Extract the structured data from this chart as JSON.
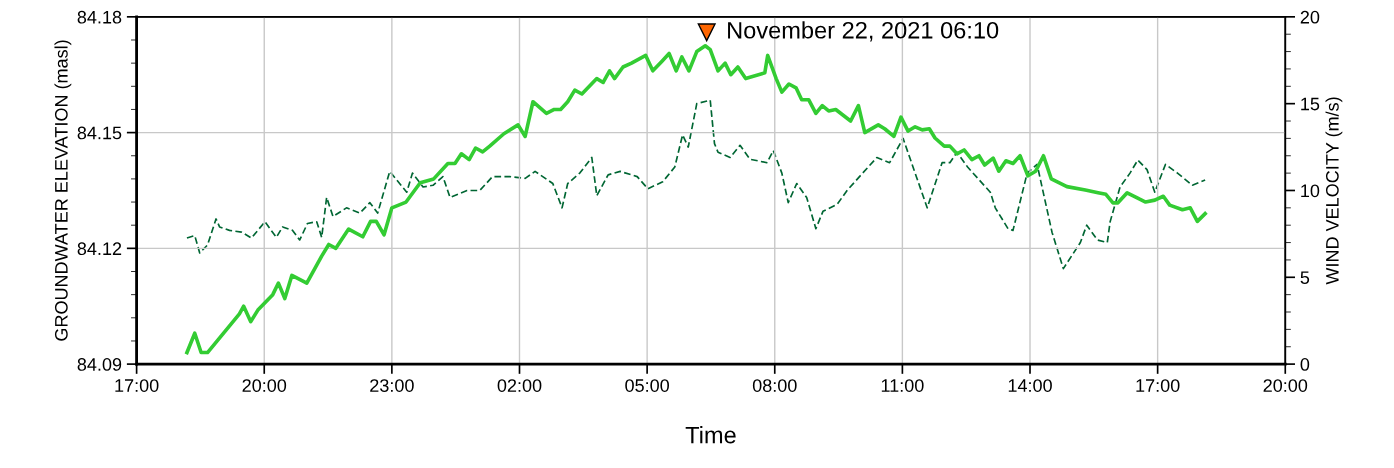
{
  "chart_data": {
    "type": "line",
    "xlabel": "Time",
    "ylabel": "GROUNDWATER ELEVATION (masl)",
    "y2label": "WIND VELOCITY (m/s)",
    "xlim": [
      "2021-11-21T17:00",
      "2021-11-22T20:00"
    ],
    "xticks": [
      {
        "value": "2021-11-21T17:00",
        "label": "17:00"
      },
      {
        "value": "2021-11-21T20:00",
        "label": "20:00"
      },
      {
        "value": "2021-11-21T23:00",
        "label": "23:00"
      },
      {
        "value": "2021-11-22T02:00",
        "label": "02:00"
      },
      {
        "value": "2021-11-22T05:00",
        "label": "05:00"
      },
      {
        "value": "2021-11-22T08:00",
        "label": "08:00"
      },
      {
        "value": "2021-11-22T11:00",
        "label": "11:00"
      },
      {
        "value": "2021-11-22T14:00",
        "label": "14:00"
      },
      {
        "value": "2021-11-22T17:00",
        "label": "17:00"
      },
      {
        "value": "2021-11-22T20:00",
        "label": "20:00"
      }
    ],
    "ylim": [
      84.09,
      84.18
    ],
    "yticks": [
      84.09,
      84.12,
      84.15,
      84.18
    ],
    "y2lim": [
      0,
      20
    ],
    "y2ticks": [
      0,
      5,
      10,
      15,
      20
    ],
    "grid": true,
    "marker": "none",
    "annotations": [
      {
        "text": "November 22, 2021 06:10",
        "x": "2021-11-22T06:24",
        "y": 84.176
      }
    ],
    "series": [
      {
        "color": "#33cc33",
        "line_style": "solid",
        "x": [
          "2021-11-21T18:11",
          "2021-11-21T18:22",
          "2021-11-21T18:31",
          "2021-11-21T18:40",
          "2021-11-21T19:25",
          "2021-11-21T19:31",
          "2021-11-21T19:41",
          "2021-11-21T19:51",
          "2021-11-21T20:12",
          "2021-11-21T20:20",
          "2021-11-21T20:29",
          "2021-11-21T20:39",
          "2021-11-21T21:00",
          "2021-11-21T21:21",
          "2021-11-21T21:31",
          "2021-11-21T21:41",
          "2021-11-21T21:59",
          "2021-11-21T22:19",
          "2021-11-21T22:30",
          "2021-11-21T22:38",
          "2021-11-21T22:49",
          "2021-11-21T23:00",
          "2021-11-21T23:20",
          "2021-11-21T23:40",
          "2021-11-21T23:59",
          "2021-11-22T00:19",
          "2021-11-22T00:29",
          "2021-11-22T00:38",
          "2021-11-22T00:49",
          "2021-11-22T00:58",
          "2021-11-22T01:08",
          "2021-11-22T01:18",
          "2021-11-22T01:38",
          "2021-11-22T01:58",
          "2021-11-22T02:08",
          "2021-11-22T02:19",
          "2021-11-22T02:38",
          "2021-11-22T02:49",
          "2021-11-22T02:58",
          "2021-11-22T03:08",
          "2021-11-22T03:18",
          "2021-11-22T03:28",
          "2021-11-22T03:49",
          "2021-11-22T03:58",
          "2021-11-22T04:07",
          "2021-11-22T04:14",
          "2021-11-22T04:26",
          "2021-11-22T04:38",
          "2021-11-22T04:58",
          "2021-11-22T05:08",
          "2021-11-22T05:21",
          "2021-11-22T05:31",
          "2021-11-22T05:41",
          "2021-11-22T05:49",
          "2021-11-22T05:59",
          "2021-11-22T06:10",
          "2021-11-22T06:22",
          "2021-11-22T06:29",
          "2021-11-22T06:40",
          "2021-11-22T06:50",
          "2021-11-22T06:58",
          "2021-11-22T07:08",
          "2021-11-22T07:19",
          "2021-11-22T07:46",
          "2021-11-22T07:50",
          "2021-11-22T08:02",
          "2021-11-22T08:10",
          "2021-11-22T08:20",
          "2021-11-22T08:30",
          "2021-11-22T08:38",
          "2021-11-22T08:48",
          "2021-11-22T08:58",
          "2021-11-22T09:07",
          "2021-11-22T09:16",
          "2021-11-22T09:26",
          "2021-11-22T09:47",
          "2021-11-22T09:58",
          "2021-11-22T10:07",
          "2021-11-22T10:26",
          "2021-11-22T10:35",
          "2021-11-22T10:48",
          "2021-11-22T10:58",
          "2021-11-22T11:08",
          "2021-11-22T11:18",
          "2021-11-22T11:28",
          "2021-11-22T11:38",
          "2021-11-22T11:46",
          "2021-11-22T11:59",
          "2021-11-22T12:07",
          "2021-11-22T12:17",
          "2021-11-22T12:27",
          "2021-11-22T12:38",
          "2021-11-22T12:48",
          "2021-11-22T12:56",
          "2021-11-22T13:08",
          "2021-11-22T13:16",
          "2021-11-22T13:26",
          "2021-11-22T13:36",
          "2021-11-22T13:46",
          "2021-11-22T13:57",
          "2021-11-22T14:08",
          "2021-11-22T14:19",
          "2021-11-22T14:30",
          "2021-11-22T14:52",
          "2021-11-22T15:18",
          "2021-11-22T15:36",
          "2021-11-22T15:47",
          "2021-11-22T15:57",
          "2021-11-22T16:04",
          "2021-11-22T16:17",
          "2021-11-22T16:34",
          "2021-11-22T16:43",
          "2021-11-22T16:56",
          "2021-11-22T17:08",
          "2021-11-22T17:17",
          "2021-11-22T17:35",
          "2021-11-22T17:46",
          "2021-11-22T17:56",
          "2021-11-22T18:07"
        ],
        "values": [
          84.093,
          84.098,
          84.093,
          84.093,
          84.103,
          84.105,
          84.101,
          84.104,
          84.108,
          84.111,
          84.107,
          84.113,
          84.111,
          84.118,
          84.121,
          84.12,
          84.125,
          84.123,
          84.127,
          84.127,
          84.1235,
          84.1305,
          84.132,
          84.137,
          84.138,
          84.142,
          84.142,
          84.1445,
          84.143,
          84.146,
          84.145,
          84.1465,
          84.1497,
          84.152,
          84.149,
          84.158,
          84.155,
          84.156,
          84.156,
          84.158,
          84.161,
          84.16,
          84.164,
          84.163,
          84.166,
          84.164,
          84.167,
          84.168,
          84.17,
          84.166,
          84.1685,
          84.1705,
          84.166,
          84.1696,
          84.166,
          84.171,
          84.1725,
          84.1715,
          84.166,
          84.168,
          84.165,
          84.167,
          84.164,
          84.1655,
          84.17,
          84.164,
          84.1605,
          84.1626,
          84.1616,
          84.1585,
          84.1585,
          84.155,
          84.157,
          84.1556,
          84.156,
          84.153,
          84.157,
          84.15,
          84.152,
          84.151,
          84.149,
          84.154,
          84.1504,
          84.1515,
          84.1507,
          84.151,
          84.1486,
          84.1465,
          84.1465,
          84.1445,
          84.1455,
          84.143,
          84.144,
          84.1416,
          84.1434,
          84.14,
          84.1427,
          84.142,
          84.144,
          84.1388,
          84.14,
          84.144,
          84.138,
          84.136,
          84.1351,
          84.1344,
          84.134,
          84.1318,
          84.1318,
          84.1344,
          84.1328,
          84.132,
          84.1325,
          84.1335,
          84.1312,
          84.13,
          84.1305,
          84.127,
          84.129
        ]
      },
      {
        "color": "#006633",
        "line_style": "dashed",
        "axis": "y2",
        "x": [
          "2021-11-21T18:11",
          "2021-11-21T18:22",
          "2021-11-21T18:29",
          "2021-11-21T18:40",
          "2021-11-21T18:52",
          "2021-11-21T18:57",
          "2021-11-21T19:11",
          "2021-11-21T19:28",
          "2021-11-21T19:42",
          "2021-11-21T20:01",
          "2021-11-21T20:17",
          "2021-11-21T20:26",
          "2021-11-21T20:40",
          "2021-11-21T20:50",
          "2021-11-21T21:01",
          "2021-11-21T21:14",
          "2021-11-21T21:21",
          "2021-11-21T21:28",
          "2021-11-21T21:37",
          "2021-11-21T21:56",
          "2021-11-21T22:15",
          "2021-11-21T22:29",
          "2021-11-21T22:40",
          "2021-11-21T22:57",
          "2021-11-21T23:21",
          "2021-11-21T23:29",
          "2021-11-21T23:44",
          "2021-11-21T23:58",
          "2021-11-22T00:12",
          "2021-11-22T00:22",
          "2021-11-22T00:46",
          "2021-11-22T01:04",
          "2021-11-22T01:22",
          "2021-11-22T01:46",
          "2021-11-22T02:08",
          "2021-11-22T02:22",
          "2021-11-22T02:47",
          "2021-11-22T03:00",
          "2021-11-22T03:08",
          "2021-11-22T03:25",
          "2021-11-22T03:42",
          "2021-11-22T03:49",
          "2021-11-22T04:05",
          "2021-11-22T04:22",
          "2021-11-22T04:46",
          "2021-11-22T05:01",
          "2021-11-22T05:22",
          "2021-11-22T05:39",
          "2021-11-22T05:50",
          "2021-11-22T05:58",
          "2021-11-22T06:10",
          "2021-11-22T06:29",
          "2021-11-22T06:35",
          "2021-11-22T06:40",
          "2021-11-22T06:57",
          "2021-11-22T07:11",
          "2021-11-22T07:25",
          "2021-11-22T07:49",
          "2021-11-22T07:58",
          "2021-11-22T08:10",
          "2021-11-22T08:19",
          "2021-11-22T08:31",
          "2021-11-22T08:45",
          "2021-11-22T08:58",
          "2021-11-22T09:08",
          "2021-11-22T09:28",
          "2021-11-22T09:42",
          "2021-11-22T10:04",
          "2021-11-22T10:24",
          "2021-11-22T10:42",
          "2021-11-22T11:01",
          "2021-11-22T11:35",
          "2021-11-22T11:56",
          "2021-11-22T12:07",
          "2021-11-22T12:17",
          "2021-11-22T12:32",
          "2021-11-22T13:04",
          "2021-11-22T13:11",
          "2021-11-22T13:29",
          "2021-11-22T13:36",
          "2021-11-22T13:56",
          "2021-11-22T14:10",
          "2021-11-22T14:31",
          "2021-11-22T14:47",
          "2021-11-22T15:11",
          "2021-11-22T15:20",
          "2021-11-22T15:35",
          "2021-11-22T15:49",
          "2021-11-22T15:53",
          "2021-11-22T16:07",
          "2021-11-22T16:21",
          "2021-11-22T16:32",
          "2021-11-22T16:45",
          "2021-11-22T16:56",
          "2021-11-22T17:11",
          "2021-11-22T17:28",
          "2021-11-22T17:49",
          "2021-11-22T18:07"
        ],
        "values": [
          7.26,
          7.4,
          6.4,
          6.86,
          8.36,
          7.9,
          7.7,
          7.6,
          7.26,
          8.2,
          7.3,
          7.9,
          7.7,
          7.15,
          8.1,
          8.2,
          7.3,
          9.6,
          8.5,
          9.0,
          8.7,
          9.3,
          8.7,
          11.1,
          9.9,
          11.0,
          10.2,
          10.3,
          10.8,
          9.6,
          10.0,
          10.0,
          10.8,
          10.8,
          10.7,
          11.1,
          10.4,
          9.0,
          10.4,
          11.0,
          11.9,
          9.7,
          10.9,
          11.1,
          10.8,
          10.1,
          10.5,
          11.35,
          13.2,
          12.5,
          15.0,
          15.2,
          12.7,
          12.2,
          11.9,
          12.6,
          11.8,
          11.6,
          12.3,
          11.0,
          9.3,
          10.4,
          9.6,
          7.8,
          8.8,
          9.2,
          10.0,
          11.0,
          11.9,
          11.6,
          13.0,
          9.0,
          11.6,
          11.6,
          12.2,
          11.35,
          9.9,
          9.0,
          7.8,
          7.7,
          11.0,
          11.5,
          7.6,
          5.5,
          7.0,
          8.0,
          7.15,
          7.0,
          8.2,
          10.2,
          11.0,
          11.75,
          11.2,
          9.9,
          11.5,
          11.0,
          10.3,
          10.6
        ]
      }
    ]
  }
}
